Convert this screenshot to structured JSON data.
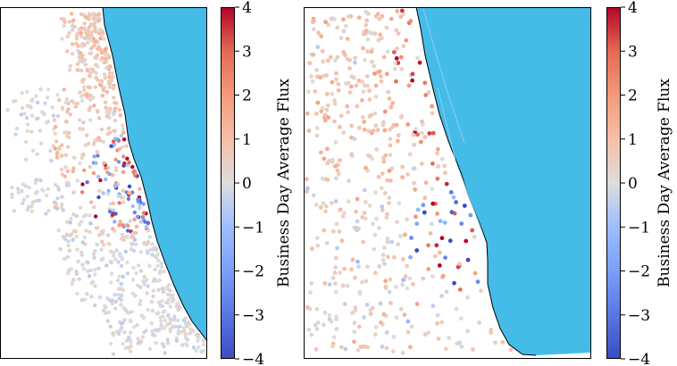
{
  "colors": {
    "water": "#45bbe8",
    "land": "#ffffff",
    "coast": "#000000",
    "colormap": "coolwarm",
    "colormap_low": "#3b4cc0",
    "colormap_mid": "#dddddd",
    "colormap_high": "#b40426"
  },
  "chart_data": [
    {
      "type": "scatter",
      "title": "",
      "colorbar": {
        "label": "Business Day Average Flux",
        "range": [
          -4,
          4
        ],
        "ticks": [
          "4",
          "3",
          "2",
          "1",
          "0",
          "−1",
          "−2",
          "−3",
          "−4"
        ]
      }
    },
    {
      "type": "scatter",
      "title": "",
      "colorbar": {
        "label": "Business Day Average Flux",
        "range": [
          -4,
          4
        ],
        "ticks": [
          "4",
          "3",
          "2",
          "1",
          "0",
          "−1",
          "−2",
          "−3",
          "−4"
        ]
      }
    }
  ]
}
